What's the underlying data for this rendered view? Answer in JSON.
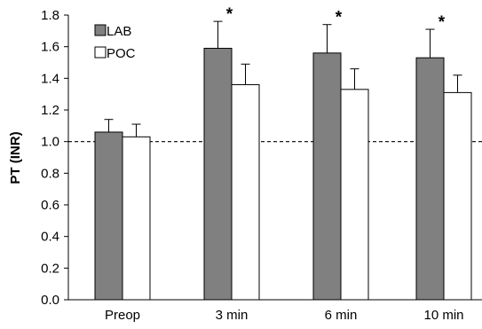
{
  "chart_data": {
    "type": "bar",
    "title": "",
    "xlabel": "",
    "ylabel": "PT (INR)",
    "ylim": [
      0,
      1.8
    ],
    "yticks": [
      "0.0",
      "0.2",
      "0.4",
      "0.6",
      "0.8",
      "1.0",
      "1.2",
      "1.4",
      "1.6",
      "1.8"
    ],
    "categories": [
      "Preop",
      "3 min",
      "6 min",
      "10 min"
    ],
    "series": [
      {
        "name": "LAB",
        "color": "#808080",
        "values": [
          1.06,
          1.59,
          1.56,
          1.53
        ],
        "error_upper": [
          0.08,
          0.17,
          0.18,
          0.18
        ]
      },
      {
        "name": "POC",
        "color": "#ffffff",
        "values": [
          1.03,
          1.36,
          1.33,
          1.31
        ],
        "error_upper": [
          0.08,
          0.13,
          0.13,
          0.11
        ]
      }
    ],
    "reference_line": {
      "value": 1.0,
      "style": "dashed"
    },
    "significance_markers": [
      "",
      "*",
      "*",
      "*"
    ],
    "legend_position": "top-left",
    "grid": false
  }
}
